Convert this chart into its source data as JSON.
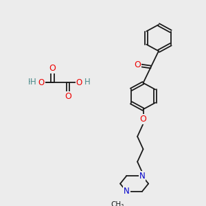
{
  "bg_color": "#ececec",
  "bond_color": "#1a1a1a",
  "bond_width": 1.3,
  "atom_colors": {
    "O": "#ee0000",
    "N": "#0000cc",
    "H": "#4a8a8a",
    "C": "#1a1a1a"
  },
  "font_size_atom": 8.0,
  "font_size_h": 7.5
}
